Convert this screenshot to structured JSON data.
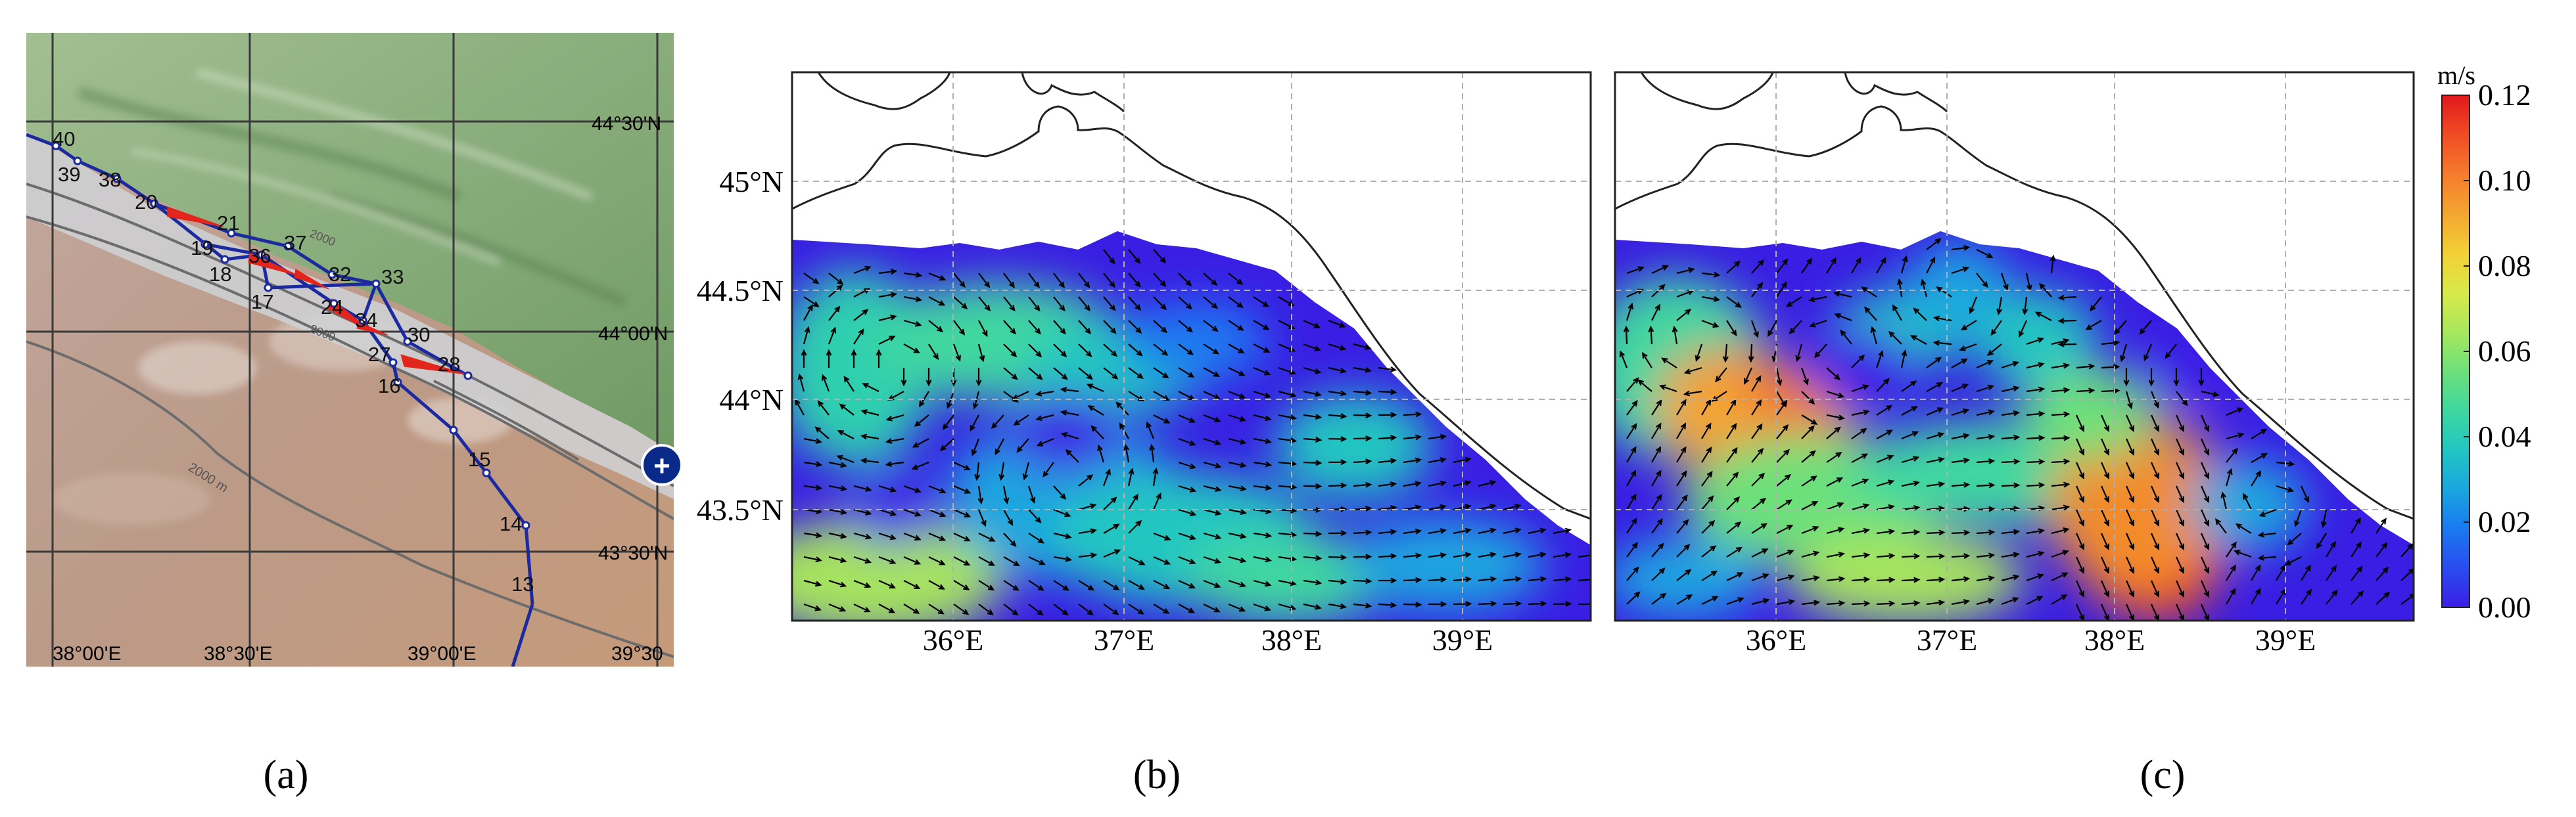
{
  "panel_a": {
    "lat_labels": [
      "44°30'N",
      "44°00'N",
      "43°30'N"
    ],
    "lon_labels": [
      "38°00'E",
      "38°30'E",
      "39°00'E",
      "39°30"
    ],
    "depth_labels": [
      "2000",
      "2000",
      "2000 m"
    ],
    "stations": [
      "40",
      "39",
      "38",
      "20",
      "21",
      "19",
      "18",
      "36",
      "37",
      "17",
      "32",
      "33",
      "24",
      "34",
      "30",
      "27",
      "28",
      "16",
      "15",
      "14",
      "13"
    ],
    "map_button_glyph": "+"
  },
  "panel_b": {
    "lat_labels": [
      "45°N",
      "44.5°N",
      "44°N",
      "43.5°N"
    ],
    "lon_labels": [
      "36°E",
      "37°E",
      "38°E",
      "39°E"
    ]
  },
  "panel_c": {
    "lon_labels": [
      "36°E",
      "37°E",
      "38°E",
      "39°E"
    ]
  },
  "colorbar": {
    "unit": "m/s",
    "ticks": [
      "0.12",
      "0.10",
      "0.08",
      "0.06",
      "0.04",
      "0.02",
      "0.00"
    ],
    "colors": [
      "#e2171d",
      "#f04c24",
      "#f57b2d",
      "#f4a630",
      "#f2d036",
      "#d9e94a",
      "#a7e85c",
      "#6de07a",
      "#3fd7a0",
      "#22c6c1",
      "#1aa6df",
      "#1a7af0",
      "#2a4cf0",
      "#3c1ee6"
    ]
  },
  "captions": [
    "(a)",
    "(b)",
    "(c)"
  ]
}
